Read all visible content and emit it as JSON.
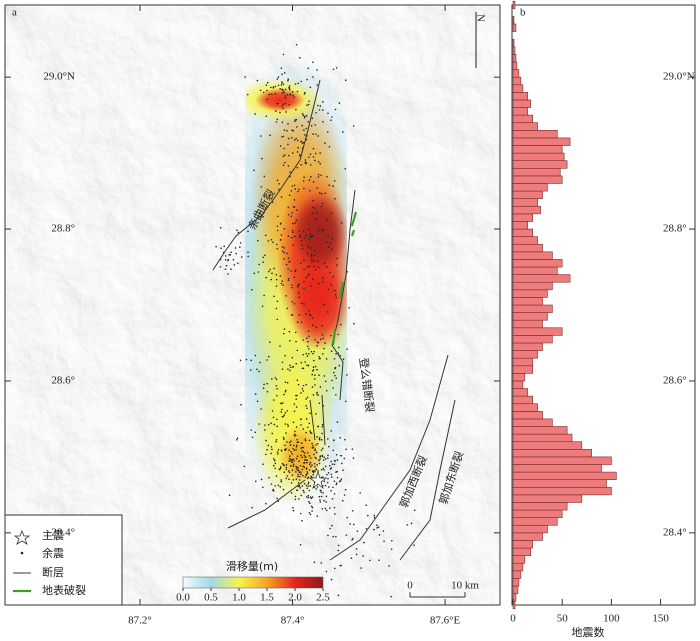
{
  "chart_data": [
    {
      "type": "map",
      "panel_label": "a",
      "xlim": [
        87.023,
        87.672
      ],
      "ylim": [
        28.305,
        29.095
      ],
      "xticks": [
        {
          "value": 87.2,
          "label": "87.2°"
        },
        {
          "value": 87.4,
          "label": "87.4°"
        },
        {
          "value": 87.6,
          "label": "87.6°E"
        }
      ],
      "yticks": [
        {
          "value": 29.0,
          "label": "29.0°N"
        },
        {
          "value": 28.8,
          "label": "28.8°"
        },
        {
          "value": 28.6,
          "label": "28.6°"
        },
        {
          "value": 28.4,
          "label": "28.4°"
        }
      ],
      "north_label": "N",
      "legend": [
        "主震",
        "余震",
        "断层",
        "地表破裂"
      ],
      "fault_labels": [
        "亲曲断裂",
        "登么错断裂",
        "郭加西断裂",
        "郭加东断裂"
      ],
      "colorbar": {
        "title": "滑移量(m)",
        "lim": [
          0,
          2.5
        ],
        "ticks": [
          {
            "value": 0,
            "label": "0.0"
          },
          0.5,
          {
            "value": 1,
            "label": "1.0"
          },
          1.5,
          {
            "value": 2,
            "label": "2.0"
          },
          2.5
        ],
        "colors": [
          "#f4fbfd",
          "#9fd8ea",
          "#f7f34a",
          "#f5a623",
          "#e8221b",
          "#8e1b1b"
        ]
      },
      "scale_bar": {
        "ticks": [
          0,
          {
            "value": 10,
            "label": "10 km"
          }
        ]
      }
    },
    {
      "type": "histogram",
      "panel_label": "b",
      "orientation": "horizontal",
      "xlabel": "地震数",
      "xlim": [
        0,
        185
      ],
      "xticks": [
        0,
        50,
        100,
        150
      ],
      "ylim": [
        28.305,
        29.095
      ],
      "color": "#ee7c7c",
      "bins": [
        28.3,
        28.31,
        28.32,
        28.33,
        28.34,
        28.35,
        28.36,
        28.37,
        28.38,
        28.39,
        28.4,
        28.41,
        28.42,
        28.43,
        28.44,
        28.45,
        28.46,
        28.47,
        28.48,
        28.49,
        28.5,
        28.51,
        28.52,
        28.53,
        28.54,
        28.55,
        28.56,
        28.57,
        28.58,
        28.59,
        28.6,
        28.61,
        28.62,
        28.63,
        28.64,
        28.65,
        28.66,
        28.67,
        28.68,
        28.69,
        28.7,
        28.71,
        28.72,
        28.73,
        28.74,
        28.75,
        28.76,
        28.77,
        28.78,
        28.79,
        28.8,
        28.81,
        28.82,
        28.83,
        28.84,
        28.85,
        28.86,
        28.87,
        28.88,
        28.89,
        28.9,
        28.91,
        28.92,
        28.93,
        28.94,
        28.95,
        28.96,
        28.97,
        28.98,
        28.99,
        29.0,
        29.01,
        29.02,
        29.03,
        29.04,
        29.05,
        29.06,
        29.07,
        29.08,
        29.09,
        29.1
      ],
      "counts": [
        2,
        3,
        5,
        6,
        8,
        10,
        12,
        18,
        20,
        30,
        35,
        45,
        50,
        55,
        70,
        100,
        95,
        105,
        90,
        100,
        80,
        70,
        60,
        55,
        40,
        30,
        25,
        20,
        15,
        10,
        12,
        20,
        20,
        25,
        30,
        40,
        50,
        30,
        35,
        40,
        30,
        35,
        40,
        58,
        45,
        50,
        40,
        30,
        25,
        20,
        15,
        20,
        28,
        25,
        30,
        35,
        50,
        48,
        55,
        52,
        50,
        58,
        45,
        25,
        20,
        15,
        18,
        15,
        10,
        8,
        6,
        4,
        3,
        2,
        1,
        0,
        3,
        1,
        0,
        2
      ]
    }
  ]
}
